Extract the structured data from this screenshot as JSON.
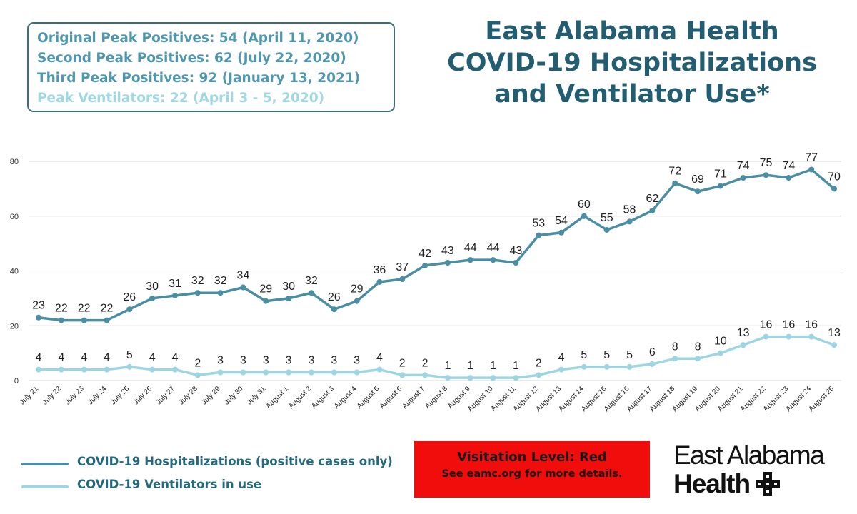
{
  "peaks": {
    "original": "Original Peak Positives: 54 (April 11, 2020)",
    "second": "Second Peak Positives: 62 (July 22, 2020)",
    "third": "Third Peak Positives: 92 (January 13, 2021)",
    "ventilators": "Peak Ventilators: 22 (April 3 - 5, 2020)"
  },
  "colors": {
    "hospitalizations": "#4a8ea3",
    "ventilators": "#9dd5e2",
    "title": "#225d71",
    "visitation_bg": "#f20d0d"
  },
  "legend": {
    "hospitalizations": "COVID-19 Hospitalizations (positive cases only)",
    "ventilators": "COVID-19 Ventilators in use"
  },
  "visitation": {
    "level": "Visitation Level: Red",
    "details": "See eamc.org for more details."
  },
  "brand": {
    "line1": "East Alabama",
    "line2": "Health",
    "logo_icon": "cross-logo-icon"
  },
  "chart_data": {
    "type": "line",
    "title": "East Alabama Health COVID-19 Hospitalizations and Ventilator Use*",
    "title_lines": [
      "East Alabama Health",
      "COVID-19 Hospitalizations",
      "and Ventilator Use*"
    ],
    "categories": [
      "July 21",
      "July 22",
      "July 23",
      "July 24",
      "July 25",
      "July 26",
      "July 27",
      "July 28",
      "July 29",
      "July 30",
      "July 31",
      "August 1",
      "August 2",
      "August 3",
      "August 4",
      "August 5",
      "August 6",
      "August 7",
      "August 8",
      "August 9",
      "August 10",
      "August 11",
      "August 12",
      "August 13",
      "August 14",
      "August 15",
      "August 16",
      "August 17",
      "August 18",
      "August 19",
      "August 20",
      "August 21",
      "August 22",
      "August 23",
      "August 24",
      "August 25"
    ],
    "series": [
      {
        "name": "COVID-19 Hospitalizations (positive cases only)",
        "values": [
          23,
          22,
          22,
          22,
          26,
          30,
          31,
          32,
          32,
          34,
          29,
          30,
          32,
          26,
          29,
          36,
          37,
          42,
          43,
          44,
          44,
          43,
          53,
          54,
          60,
          55,
          58,
          62,
          72,
          69,
          71,
          74,
          75,
          74,
          77,
          70
        ]
      },
      {
        "name": "COVID-19 Ventilators in use",
        "values": [
          4,
          4,
          4,
          4,
          5,
          4,
          4,
          2,
          3,
          3,
          3,
          3,
          3,
          3,
          3,
          4,
          2,
          2,
          1,
          1,
          1,
          1,
          2,
          4,
          5,
          5,
          5,
          6,
          8,
          8,
          10,
          13,
          16,
          16,
          16,
          13
        ]
      }
    ],
    "yticks": [
      0,
      20,
      40,
      60,
      80
    ],
    "ylim": [
      0,
      80
    ],
    "grid": true,
    "legend_position": "bottom-left",
    "data_labels": true
  }
}
